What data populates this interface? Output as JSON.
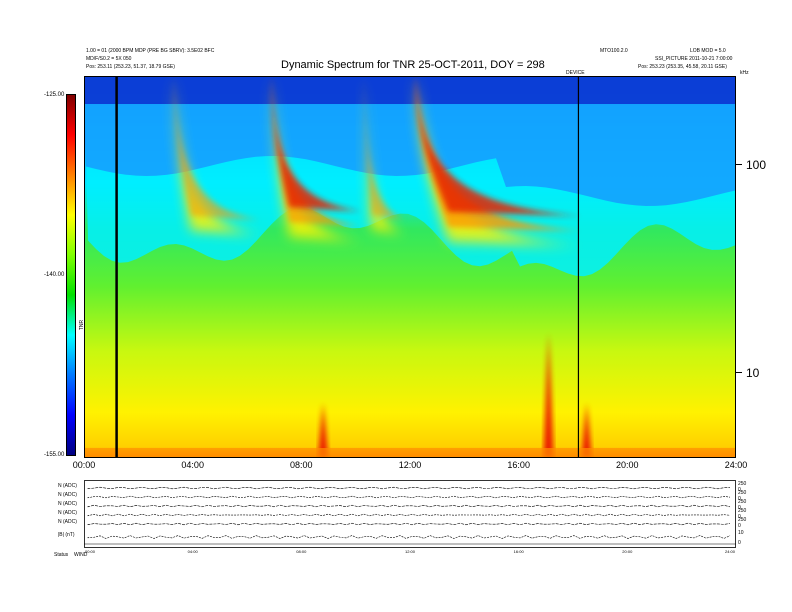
{
  "chart_data": {
    "type": "heatmap",
    "title": "Dynamic Spectrum for TNR 25-OCT-2011, DOY = 298",
    "colorbar": {
      "ticks": [
        "-125.00",
        "-140.00",
        "-155.00"
      ],
      "label": "TNR",
      "range": [
        -155,
        -125
      ],
      "colors": [
        "#000080",
        "#0000ff",
        "#0078ff",
        "#00ffff",
        "#00e000",
        "#80ff00",
        "#ffff00",
        "#ff8000",
        "#ff0000",
        "#800000"
      ]
    },
    "x_ticks": [
      "00:00",
      "04:00",
      "08:00",
      "12:00",
      "16:00",
      "20:00",
      "24:00"
    ],
    "x_range_hours": [
      0,
      24
    ],
    "y_axis": {
      "scale": "log",
      "ticks": [
        "100",
        "10"
      ],
      "unit": "kHz",
      "range": [
        4,
        320
      ]
    },
    "header_left": [
      "1.00 = 01 (2000 BPM MDP (PRE BG SBRV): 3.5E02 BFC",
      "MD/F/S0.2 = 5X 050",
      "Pos:   253.11 (253.23, 51.37, 18.79 GSE)"
    ],
    "header_right": [
      "MTO100.2.0",
      "LOB MOD = 5.0",
      "SSI_PICTURE 2011-10-21 7:00:00",
      "Pos:   253.23 (253.35, 45.58, 20.11 GSE)"
    ],
    "marker_label": "DEVICE",
    "marker_times_hours": [
      1.2,
      18.2
    ],
    "drifting_bursts": [
      {
        "start_hour": 3.3,
        "end_hour": 6.5,
        "intensity": 0.72
      },
      {
        "start_hour": 6.9,
        "end_hour": 10.2,
        "intensity": 0.88
      },
      {
        "start_hour": 10.3,
        "end_hour": 11.8,
        "intensity": 0.7
      },
      {
        "start_hour": 12.2,
        "end_hour": 18.3,
        "intensity": 1.0
      }
    ],
    "spikes_hours": [
      8.8,
      17.1,
      18.5
    ]
  },
  "bottom_panel": {
    "row_labels": [
      "N (ADC)",
      "N (ADC)",
      "N (ADC)",
      "N (ADC)",
      "N (ADC)",
      "|B| (nT)",
      "Status"
    ],
    "right_ticks": [
      "250",
      "0",
      "250",
      "0",
      "250",
      "0",
      "250",
      "0",
      "250",
      "0",
      "10",
      "0"
    ],
    "x_ticks": [
      "00:00",
      "04:00",
      "08:00",
      "12:00",
      "16:00",
      "20:00",
      "24:00"
    ],
    "status_label": "Status",
    "status_value": "WIND"
  }
}
